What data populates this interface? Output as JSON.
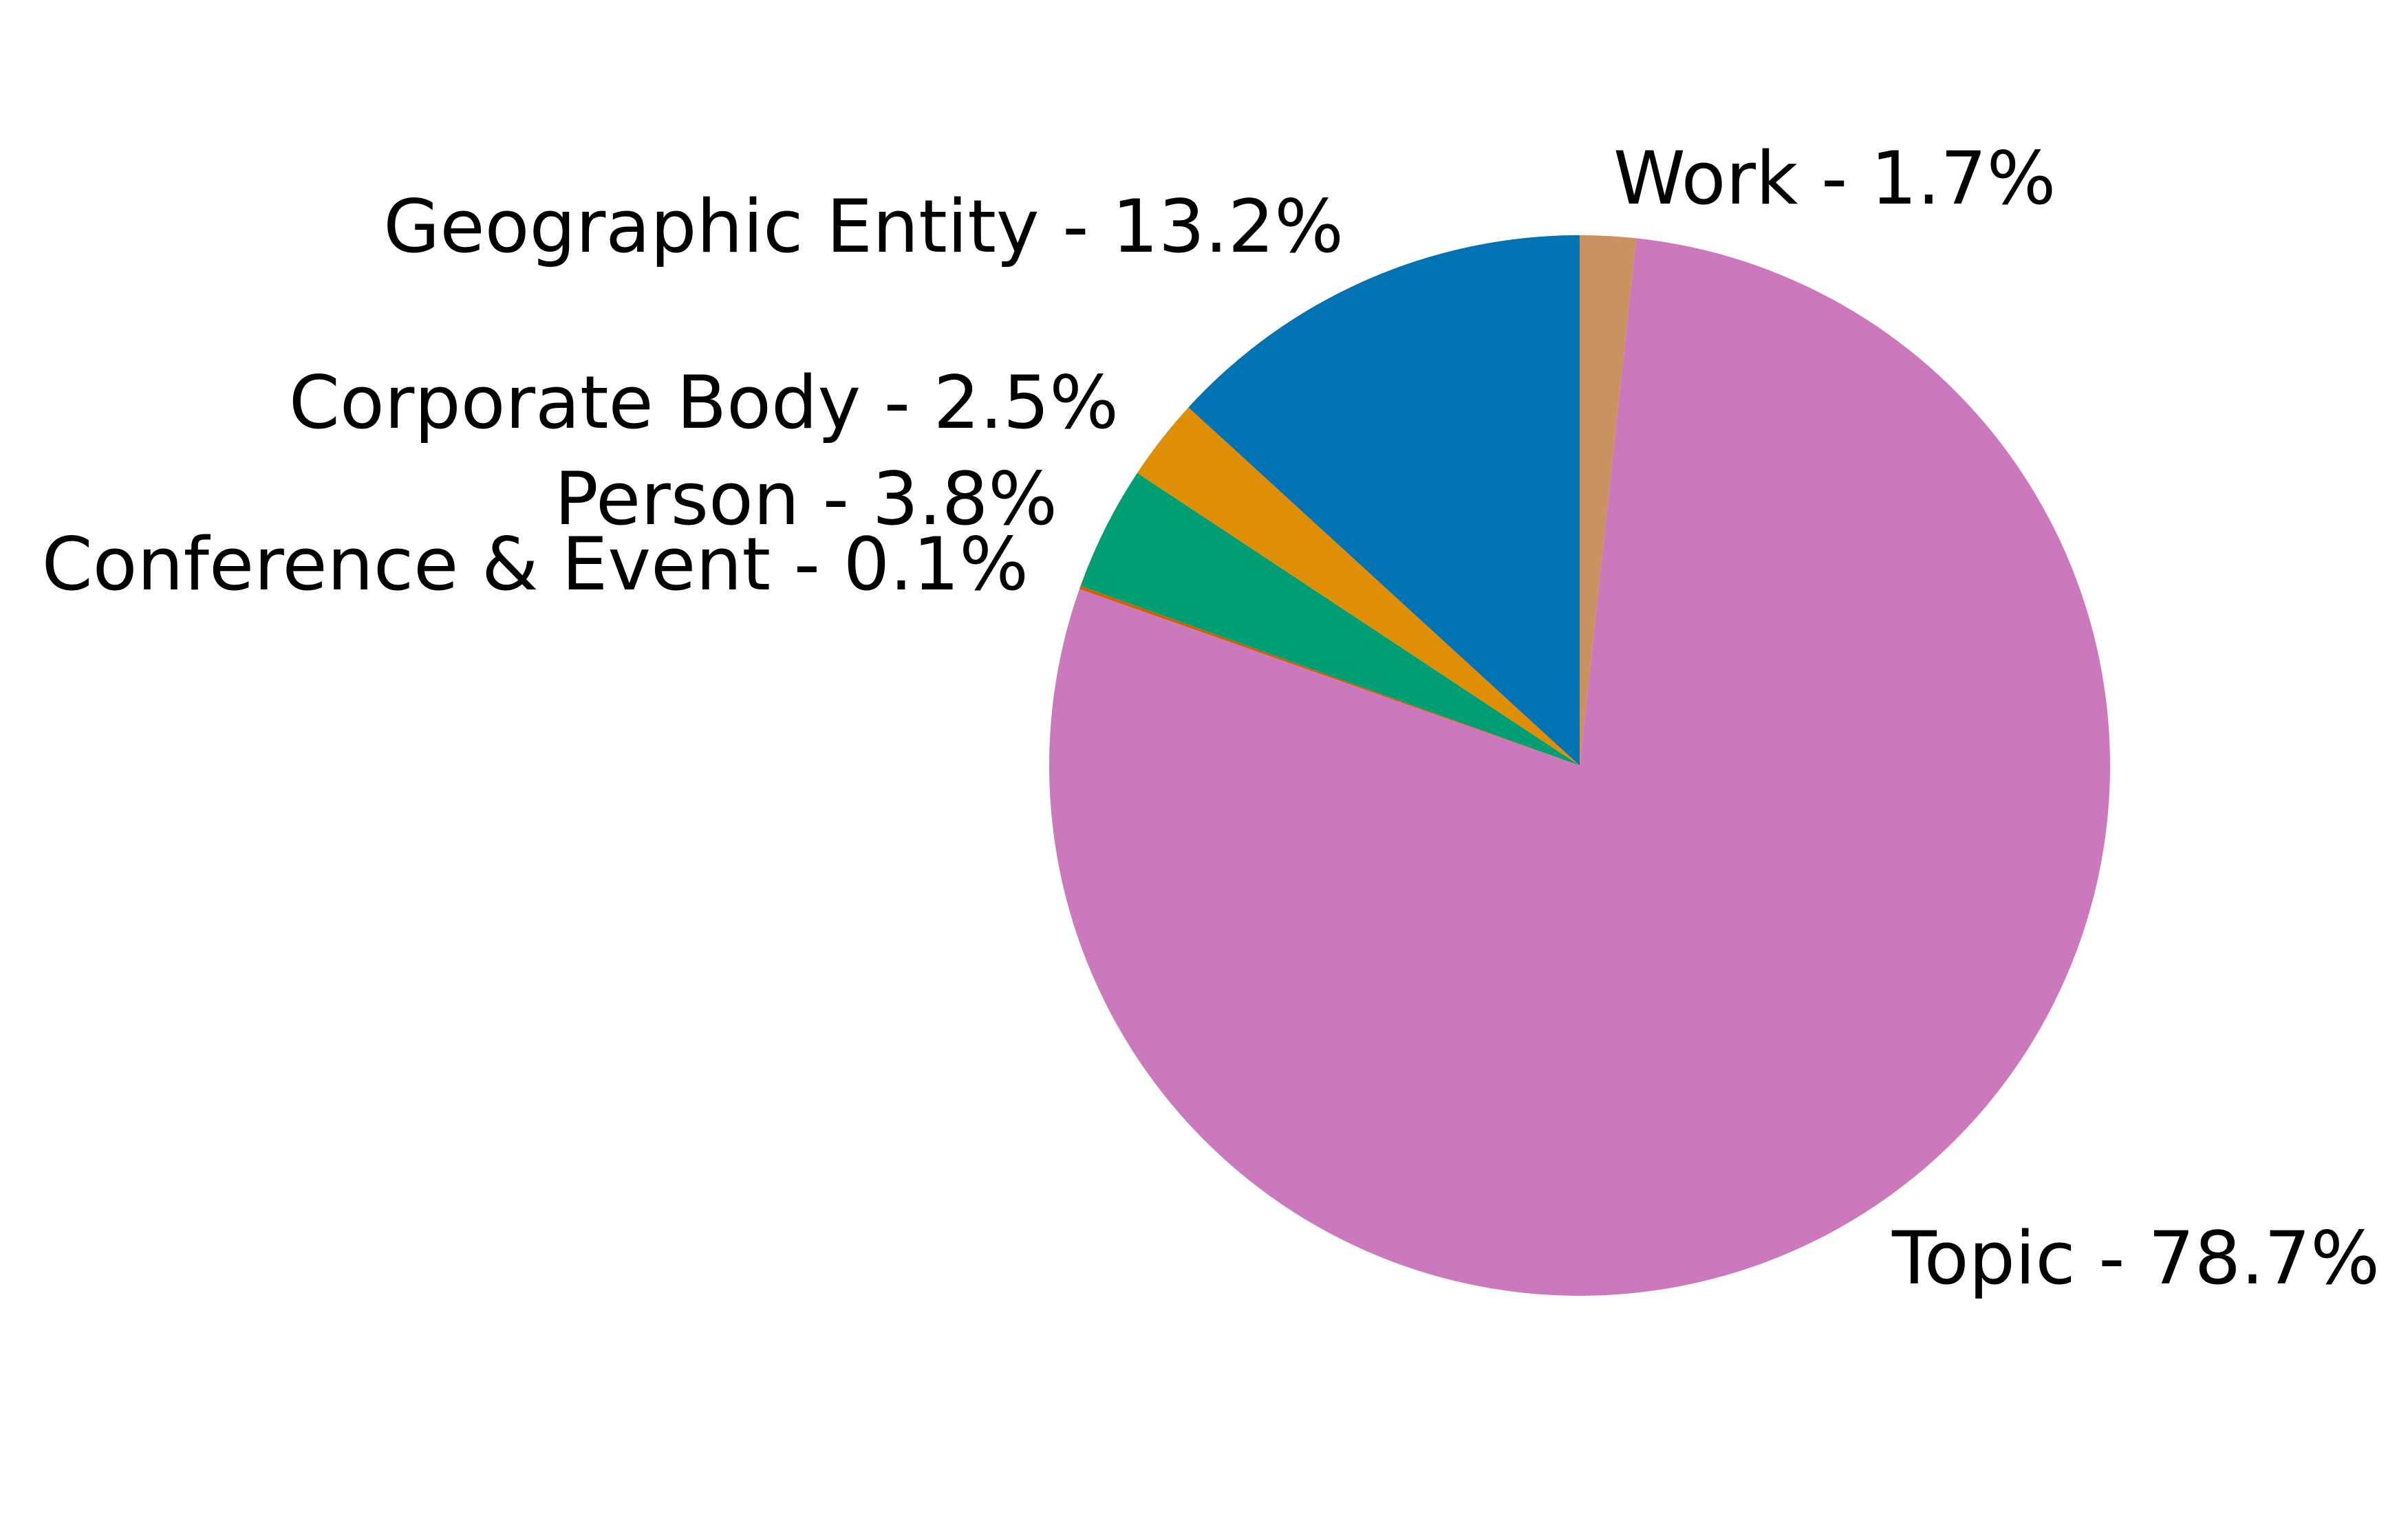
{
  "chart_data": {
    "type": "pie",
    "start_angle": "12 o'clock",
    "direction": "clockwise",
    "slices": [
      {
        "name": "Work",
        "value": 1.7,
        "label": "Work - 1.7%",
        "color": "#CA9161"
      },
      {
        "name": "Topic",
        "value": 78.7,
        "label": "Topic - 78.7%",
        "color": "#CC78BC"
      },
      {
        "name": "Conference & Event",
        "value": 0.1,
        "label": "Conference & Event - 0.1%",
        "color": "#D55E00"
      },
      {
        "name": "Person",
        "value": 3.8,
        "label": "Person - 3.8%",
        "color": "#029E73"
      },
      {
        "name": "Corporate Body",
        "value": 2.5,
        "label": "Corporate Body - 2.5%",
        "color": "#DE8F05"
      },
      {
        "name": "Geographic Entity",
        "value": 13.2,
        "label": "Geographic Entity - 13.2%",
        "color": "#0173B2"
      }
    ]
  }
}
